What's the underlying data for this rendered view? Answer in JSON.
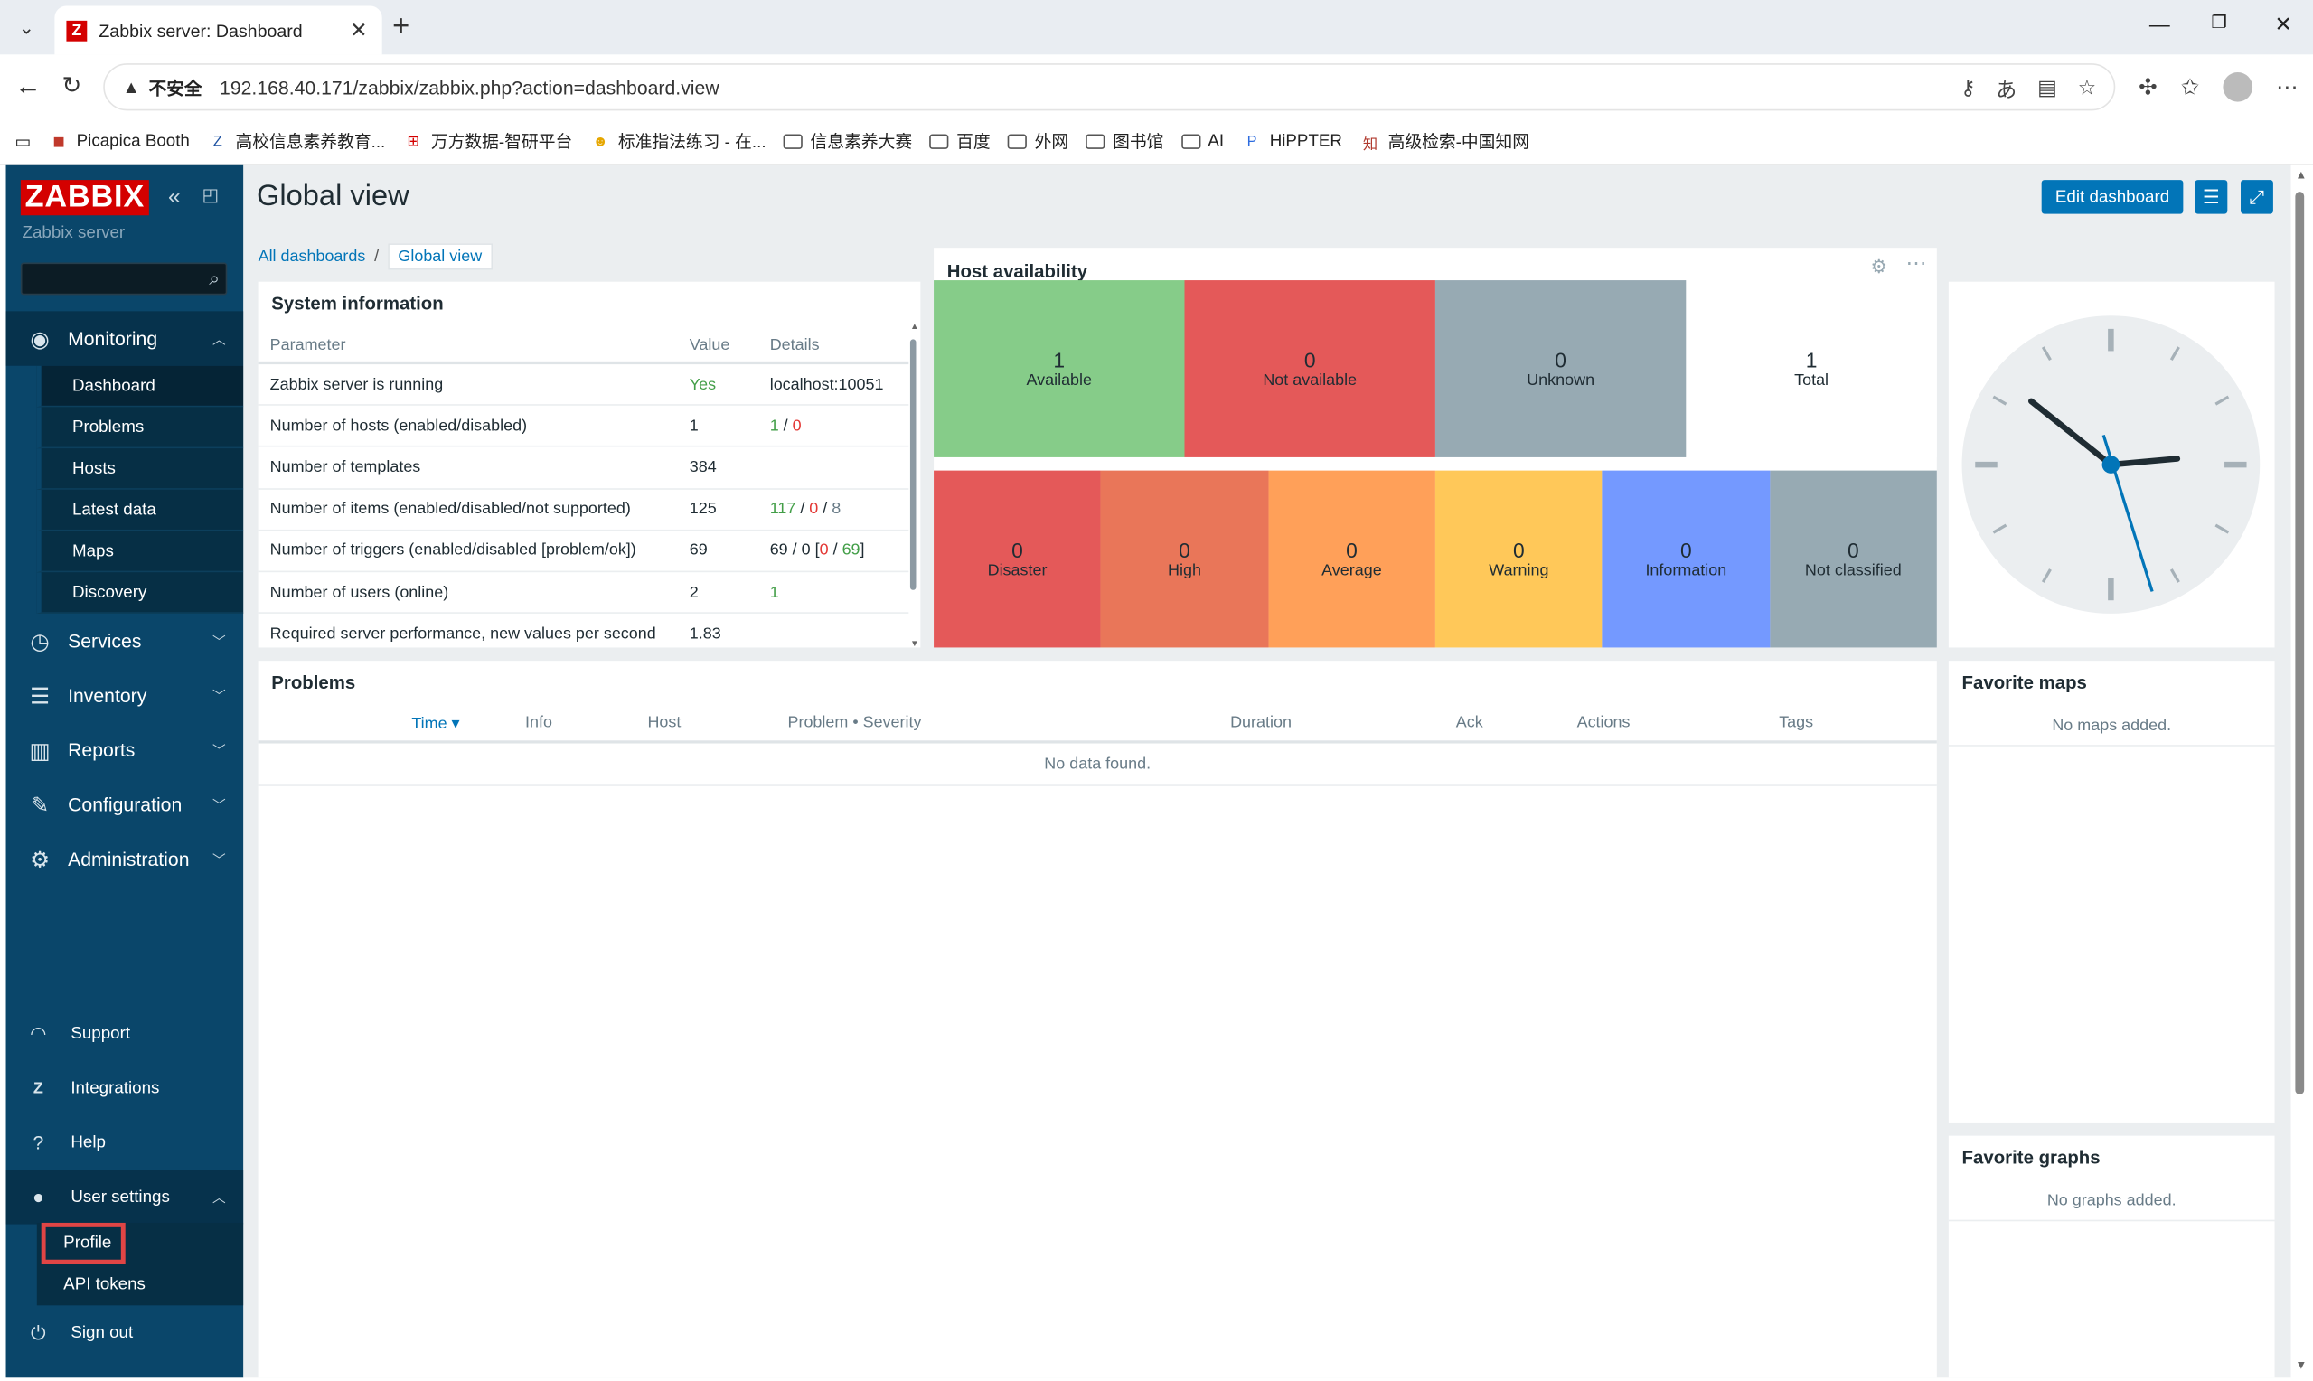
{
  "browser": {
    "tab_title": "Zabbix server: Dashboard",
    "tab_icon": "Z",
    "insecure_label": "不安全",
    "url": "192.168.40.171/zabbix/zabbix.php?action=dashboard.view",
    "bookmarks": [
      {
        "label": "Picapica Booth",
        "icon": "picapica-icon"
      },
      {
        "label": "高校信息素养教育...",
        "icon": "z-icon"
      },
      {
        "label": "万方数据-智研平台",
        "icon": "wanfang-icon"
      },
      {
        "label": "标准指法练习 - 在...",
        "icon": "smile-icon"
      },
      {
        "label": "信息素养大赛",
        "icon": "folder-icon"
      },
      {
        "label": "百度",
        "icon": "folder-icon"
      },
      {
        "label": "外网",
        "icon": "folder-icon"
      },
      {
        "label": "图书馆",
        "icon": "folder-icon"
      },
      {
        "label": "AI",
        "icon": "folder-icon"
      },
      {
        "label": "HiPPTER",
        "icon": "p-icon"
      },
      {
        "label": "高级检索-中国知网",
        "icon": "cnki-icon"
      }
    ]
  },
  "sidebar": {
    "logo": "ZABBIX",
    "server_name": "Zabbix server",
    "monitoring": {
      "label": "Monitoring",
      "items": [
        "Dashboard",
        "Problems",
        "Hosts",
        "Latest data",
        "Maps",
        "Discovery"
      ]
    },
    "menu": [
      "Services",
      "Inventory",
      "Reports",
      "Configuration",
      "Administration"
    ],
    "bottom": [
      "Support",
      "Integrations",
      "Help"
    ],
    "user_settings": {
      "label": "User settings",
      "items": [
        "Profile",
        "API tokens"
      ]
    },
    "sign_out": "Sign out"
  },
  "page": {
    "title": "Global view",
    "edit_button": "Edit dashboard",
    "breadcrumb": {
      "all": "All dashboards",
      "current": "Global view"
    }
  },
  "system_info": {
    "title": "System information",
    "headers": [
      "Parameter",
      "Value",
      "Details"
    ],
    "rows": [
      {
        "param": "Zabbix server is running",
        "value": "Yes",
        "details": "localhost:10051"
      },
      {
        "param": "Number of hosts (enabled/disabled)",
        "value": "1",
        "details": "1 / 0"
      },
      {
        "param": "Number of templates",
        "value": "384",
        "details": ""
      },
      {
        "param": "Number of items (enabled/disabled/not supported)",
        "value": "125",
        "details": "117 / 0 / 8"
      },
      {
        "param": "Number of triggers (enabled/disabled [problem/ok])",
        "value": "69",
        "details": "69 / 0 [0 / 69]"
      },
      {
        "param": "Number of users (online)",
        "value": "2",
        "details": "1"
      },
      {
        "param": "Required server performance, new values per second",
        "value": "1.83",
        "details": ""
      }
    ]
  },
  "host_availability": {
    "title": "Host availability",
    "cells": [
      {
        "value": "1",
        "label": "Available",
        "color": "#86cc89"
      },
      {
        "value": "0",
        "label": "Not available",
        "color": "#e45959"
      },
      {
        "value": "0",
        "label": "Unknown",
        "color": "#97aab3"
      },
      {
        "value": "1",
        "label": "Total",
        "color": "#ffffff"
      }
    ]
  },
  "severity": [
    {
      "value": "0",
      "label": "Disaster",
      "color": "#e45959"
    },
    {
      "value": "0",
      "label": "High",
      "color": "#e97659"
    },
    {
      "value": "0",
      "label": "Average",
      "color": "#ffa059"
    },
    {
      "value": "0",
      "label": "Warning",
      "color": "#ffc859"
    },
    {
      "value": "0",
      "label": "Information",
      "color": "#7499ff"
    },
    {
      "value": "0",
      "label": "Not classified",
      "color": "#97aab3"
    }
  ],
  "problems": {
    "title": "Problems",
    "headers": [
      "Time ▾",
      "Info",
      "Host",
      "Problem • Severity",
      "Duration",
      "Ack",
      "Actions",
      "Tags"
    ],
    "empty": "No data found."
  },
  "favorite_maps": {
    "title": "Favorite maps",
    "empty": "No maps added."
  },
  "favorite_graphs": {
    "title": "Favorite graphs",
    "empty": "No graphs added."
  }
}
